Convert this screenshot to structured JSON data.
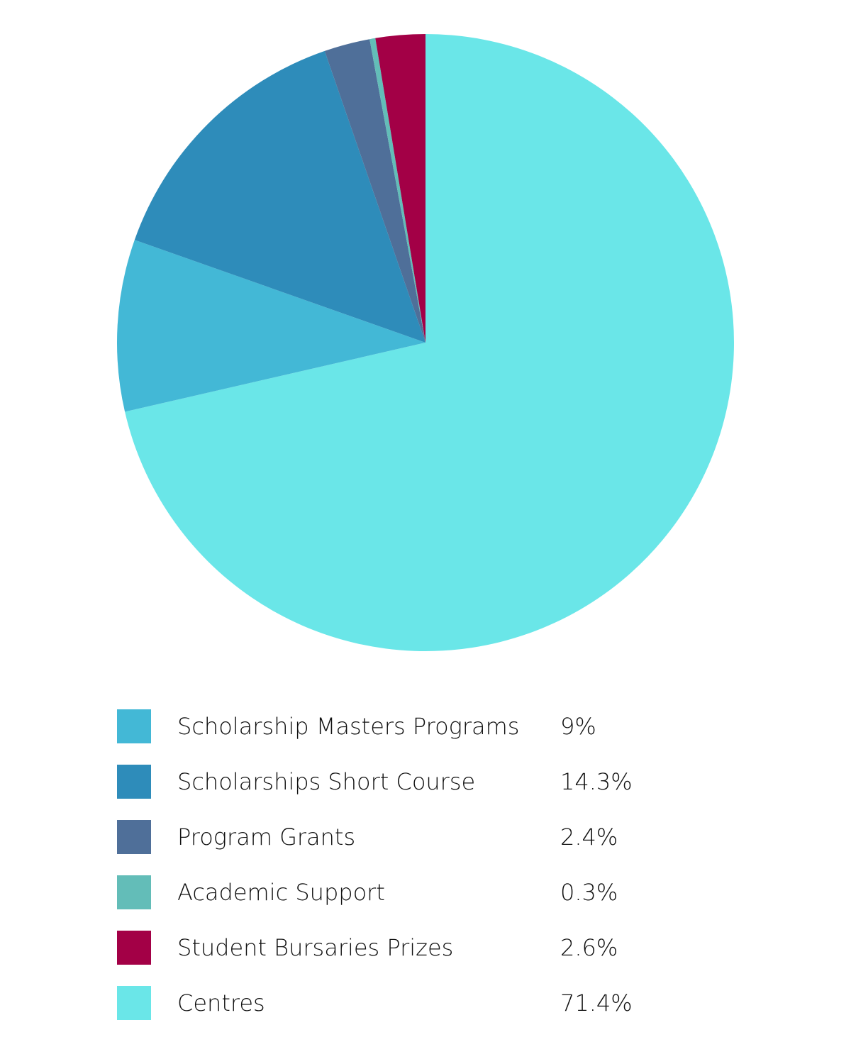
{
  "chart_data": {
    "type": "pie",
    "title": "",
    "slices": [
      {
        "label": "Scholarship Masters Programs",
        "value": 9,
        "value_label": "9%",
        "color": "#43b8d6"
      },
      {
        "label": "Scholarships Short Course",
        "value": 14.3,
        "value_label": "14.3%",
        "color": "#2e8cba"
      },
      {
        "label": "Program Grants",
        "value": 2.4,
        "value_label": "2.4%",
        "color": "#4f6f99"
      },
      {
        "label": "Academic Support",
        "value": 0.3,
        "value_label": "0.3%",
        "color": "#63bdb8"
      },
      {
        "label": "Student Bursaries Prizes",
        "value": 2.6,
        "value_label": "2.6%",
        "color": "#a30046"
      },
      {
        "label": "Centres",
        "value": 71.4,
        "value_label": "71.4%",
        "color": "#6ae6e8"
      }
    ],
    "legend_position": "bottom",
    "start_angle": "12 o'clock",
    "direction": "clockwise-from-centres"
  }
}
